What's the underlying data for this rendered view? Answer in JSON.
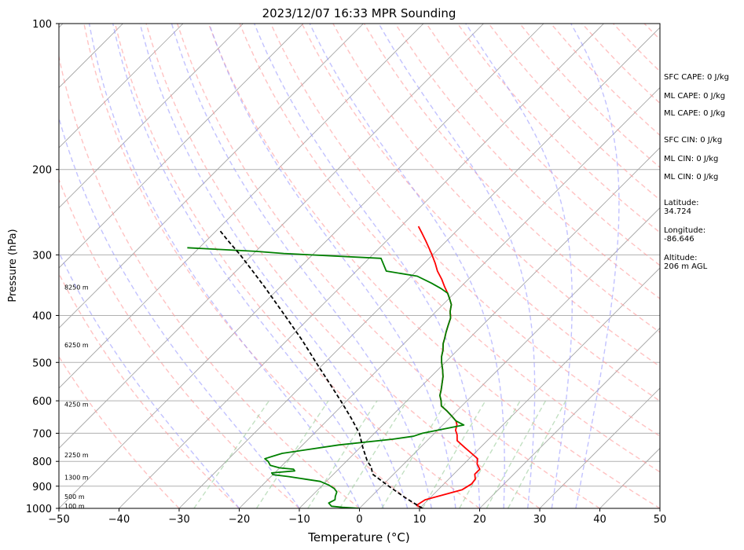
{
  "chart_data": {
    "type": "line",
    "title": "2023/12/07 16:33 MPR Sounding",
    "xlabel": "Temperature (°C)",
    "ylabel": "Pressure (hPa)",
    "xlim": [
      -50,
      50
    ],
    "ylim": [
      1000,
      100
    ],
    "y_scale": "log",
    "skew": "skew-T",
    "grid": true,
    "x_ticks": [
      "−50",
      "−40",
      "−30",
      "−20",
      "−10",
      "0",
      "10",
      "20",
      "30",
      "40",
      "50"
    ],
    "y_ticks": [
      "100",
      "200",
      "300",
      "400",
      "500",
      "600",
      "700",
      "800",
      "900",
      "1000"
    ],
    "series": [
      {
        "color": "#ff0000",
        "points": [
          [
            10.5,
            1000
          ],
          [
            9,
            985
          ],
          [
            9.5,
            960
          ],
          [
            12,
            935
          ],
          [
            14,
            915
          ],
          [
            14.6,
            890
          ],
          [
            14.4,
            870
          ],
          [
            13.5,
            850
          ],
          [
            13.5,
            830
          ],
          [
            12.2,
            810
          ],
          [
            11.4,
            790
          ],
          [
            9.5,
            770
          ],
          [
            7.5,
            750
          ],
          [
            5,
            725
          ],
          [
            4,
            705
          ],
          [
            3,
            690
          ],
          [
            2.3,
            672
          ],
          [
            1.5,
            660
          ],
          [
            0,
            645
          ],
          [
            -1.6,
            630
          ],
          [
            -3.4,
            615
          ],
          [
            -4.3,
            600
          ],
          [
            -5.4,
            585
          ],
          [
            -6.1,
            570
          ],
          [
            -6.9,
            555
          ],
          [
            -8,
            535
          ],
          [
            -9.2,
            518
          ],
          [
            -10.6,
            500
          ],
          [
            -11.6,
            486
          ],
          [
            -12.4,
            472
          ],
          [
            -13.5,
            457
          ],
          [
            -14.1,
            446
          ],
          [
            -14.9,
            433
          ],
          [
            -15.7,
            419
          ],
          [
            -16.5,
            405
          ],
          [
            -17.7,
            392
          ],
          [
            -18.6,
            380
          ],
          [
            -19.8,
            370
          ],
          [
            -21.1,
            360
          ],
          [
            -22.7,
            349
          ],
          [
            -24.4,
            337
          ],
          [
            -26.5,
            324
          ],
          [
            -28.2,
            312
          ],
          [
            -30.1,
            300
          ],
          [
            -31.8,
            290
          ],
          [
            -33.4,
            281
          ],
          [
            -35.3,
            271
          ],
          [
            -37.1,
            262
          ]
        ]
      },
      {
        "color": "#008000",
        "points": [
          [
            0,
            1000
          ],
          [
            -3,
            995
          ],
          [
            -5,
            990
          ],
          [
            -6,
            975
          ],
          [
            -5.5,
            960
          ],
          [
            -6,
            945
          ],
          [
            -6.5,
            925
          ],
          [
            -7.5,
            910
          ],
          [
            -9,
            895
          ],
          [
            -11,
            880
          ],
          [
            -14,
            870
          ],
          [
            -17,
            860
          ],
          [
            -20,
            852
          ],
          [
            -20.5,
            845
          ],
          [
            -17,
            837
          ],
          [
            -17.5,
            830
          ],
          [
            -20,
            825
          ],
          [
            -22,
            815
          ],
          [
            -23,
            800
          ],
          [
            -24,
            790
          ],
          [
            -23,
            780
          ],
          [
            -22,
            770
          ],
          [
            -14,
            740
          ],
          [
            -6,
            720
          ],
          [
            -3,
            710
          ],
          [
            -2,
            700
          ],
          [
            3.5,
            673
          ],
          [
            1.5,
            660
          ],
          [
            0,
            645
          ],
          [
            -1.6,
            630
          ],
          [
            -3.4,
            615
          ],
          [
            -4.3,
            600
          ],
          [
            -5.4,
            585
          ],
          [
            -6.1,
            570
          ],
          [
            -6.9,
            555
          ],
          [
            -8,
            535
          ],
          [
            -9.2,
            518
          ],
          [
            -10.6,
            500
          ],
          [
            -11.6,
            486
          ],
          [
            -12.4,
            472
          ],
          [
            -13.5,
            457
          ],
          [
            -14.1,
            446
          ],
          [
            -14.9,
            433
          ],
          [
            -15.7,
            419
          ],
          [
            -16.5,
            405
          ],
          [
            -17.7,
            392
          ],
          [
            -18.6,
            380
          ],
          [
            -19.8,
            370
          ],
          [
            -21.1,
            360
          ],
          [
            -23,
            352
          ],
          [
            -25.5,
            343
          ],
          [
            -29,
            332
          ],
          [
            -35,
            324
          ],
          [
            -38,
            305
          ],
          [
            -55,
            298
          ],
          [
            -60,
            295
          ],
          [
            -72,
            290
          ]
        ]
      },
      {
        "color": "#000000",
        "dashed": true,
        "points": [
          [
            10.5,
            1000
          ],
          [
            5.8,
            950
          ],
          [
            1.2,
            900
          ],
          [
            -3.5,
            850
          ],
          [
            -5,
            820
          ],
          [
            -6.5,
            800
          ],
          [
            -9.5,
            750
          ],
          [
            -12.5,
            700
          ],
          [
            -16.5,
            650
          ],
          [
            -21,
            600
          ],
          [
            -26,
            550
          ],
          [
            -31.5,
            500
          ],
          [
            -37.5,
            450
          ],
          [
            -44.5,
            400
          ],
          [
            -52.5,
            350
          ],
          [
            -58,
            320
          ],
          [
            -62,
            300
          ],
          [
            -66.5,
            280
          ],
          [
            -69.5,
            267
          ]
        ]
      }
    ],
    "height_labels": [
      {
        "label": "100 m",
        "pressure": 988
      },
      {
        "label": "500 m",
        "pressure": 945
      },
      {
        "label": "1300 m",
        "pressure": 863
      },
      {
        "label": "2250 m",
        "pressure": 776
      },
      {
        "label": "4250 m",
        "pressure": 610
      },
      {
        "label": "6250 m",
        "pressure": 460
      },
      {
        "label": "8250 m",
        "pressure": 350
      }
    ],
    "dry_adiabats_color": "#ff9999",
    "moist_adiabats_color": "#9999ff",
    "mixing_ratio_color": "#99cc99",
    "isotherm_color": "#a0a0a0"
  },
  "side_info": [
    "SFC CAPE: 0 J/kg",
    "ML CAPE: 0 J/kg",
    "ML CAPE: 0 J/kg",
    "SFC CIN: 0 J/kg",
    "ML CIN: 0 J/kg",
    "ML CIN: 0 J/kg",
    "Latitude:\n34.724",
    "Longitude:\n-86.646",
    "Altitude:\n206 m AGL"
  ]
}
